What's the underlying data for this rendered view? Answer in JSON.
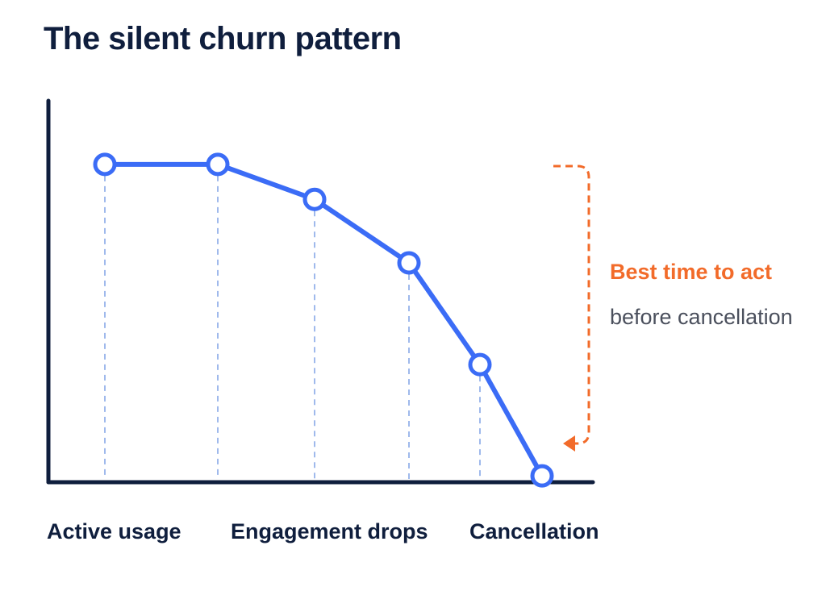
{
  "chart_data": {
    "type": "line",
    "title": "The silent churn pattern",
    "x_labels": [
      "Active usage",
      "Engagement drops",
      "Cancellation"
    ],
    "series": [
      {
        "values": [
          100,
          100,
          89,
          69,
          37,
          2
        ]
      }
    ],
    "ylim": [
      0,
      120
    ],
    "grid": false,
    "annotation": {
      "title": "Best time to act",
      "subtitle": "before cancellation"
    },
    "colors": {
      "line": "#3b6cf6",
      "axis": "#0f1e3d",
      "guide": "#9fb9ec",
      "annotation": "#f26b2a",
      "subtitle": "#4a4f5c"
    }
  }
}
